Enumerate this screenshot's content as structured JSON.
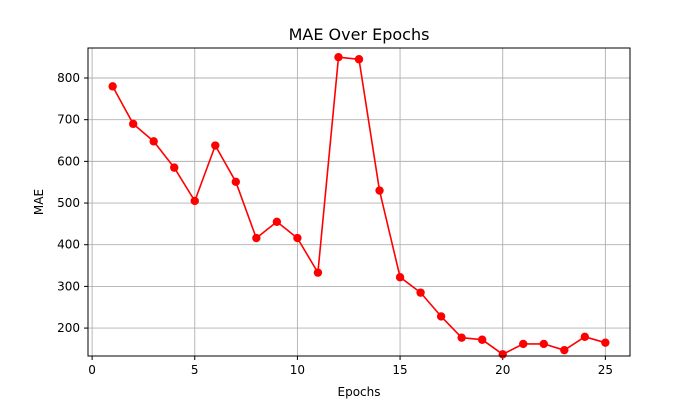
{
  "chart_data": {
    "type": "line",
    "title": "MAE Over Epochs",
    "xlabel": "Epochs",
    "ylabel": "MAE",
    "xlim": [
      -0.2,
      26.2
    ],
    "ylim": [
      133,
      872
    ],
    "xticks": [
      0,
      5,
      10,
      15,
      20,
      25
    ],
    "yticks": [
      200,
      300,
      400,
      500,
      600,
      700,
      800
    ],
    "grid": true,
    "series_color": "#ff0000",
    "x": [
      1,
      2,
      3,
      4,
      5,
      6,
      7,
      8,
      9,
      10,
      11,
      12,
      13,
      14,
      15,
      16,
      17,
      18,
      19,
      20,
      21,
      22,
      23,
      24,
      25
    ],
    "values": [
      780,
      690,
      648,
      585,
      505,
      638,
      551,
      416,
      455,
      416,
      333,
      850,
      845,
      530,
      322,
      285,
      228,
      177,
      172,
      137,
      162,
      162,
      147,
      179,
      165
    ]
  }
}
